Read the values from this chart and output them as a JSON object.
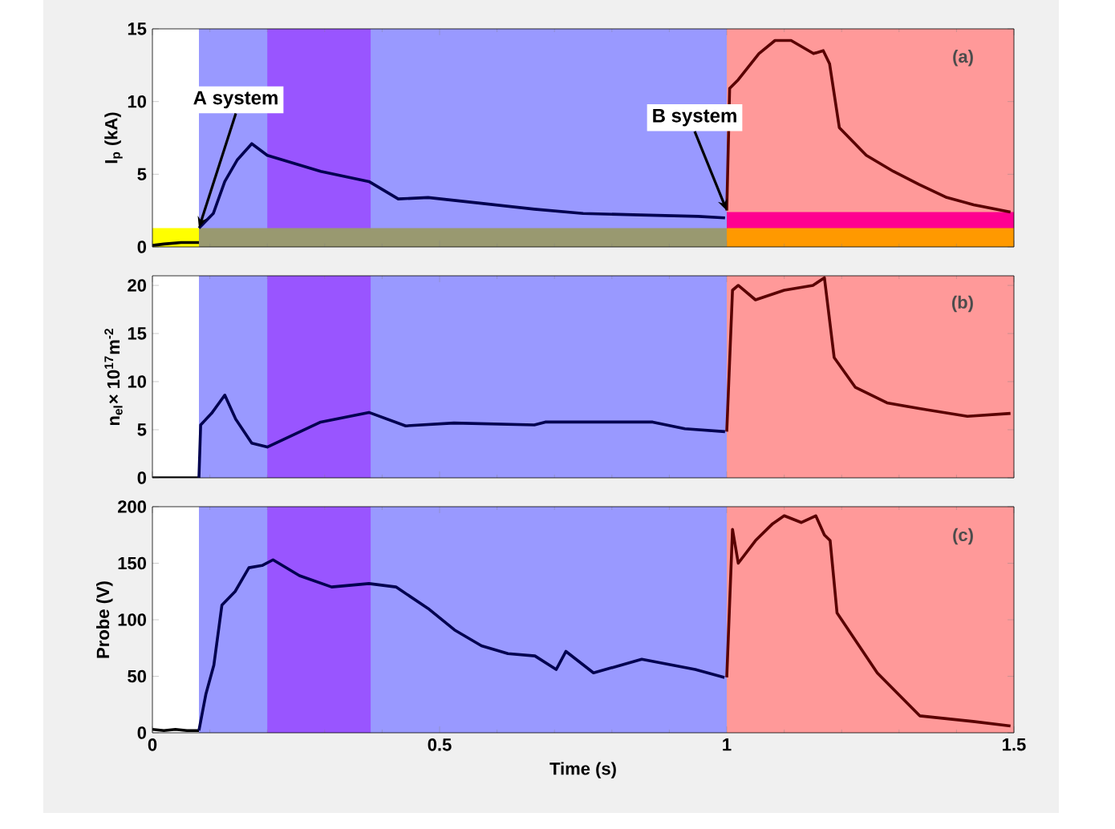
{
  "chart_data": [
    {
      "type": "line",
      "ylabel": "I$_{p}$ (kA)",
      "xlim": [
        0,
        1.5
      ],
      "ylim": [
        0,
        15
      ],
      "xticks": [
        0,
        0.5,
        1,
        1.5
      ],
      "yticks": [
        0,
        5,
        10,
        15
      ],
      "tick_labels": "y",
      "bands": [
        {
          "axis": "x",
          "from": 0.081,
          "to": 1.0,
          "color": "#9999ff"
        },
        {
          "axis": "x",
          "from": 0.2,
          "to": 0.38,
          "color": "#9955ff"
        },
        {
          "axis": "x",
          "from": 1.0,
          "to": 1.5,
          "color": "#ff9999"
        }
      ],
      "series": [
        {
          "type": "area",
          "color": "#ffff00",
          "x": [
            0,
            0.081
          ],
          "values": [
            1.3,
            1.3
          ]
        },
        {
          "type": "area",
          "color": "#999970",
          "x": [
            0.081,
            1.0
          ],
          "values": [
            1.3,
            1.3
          ]
        },
        {
          "type": "area",
          "color": "#ff0090",
          "x": [
            1.0,
            1.5
          ],
          "values": [
            2.4,
            2.4
          ]
        },
        {
          "type": "area",
          "color": "#ff9900",
          "x": [
            1.0,
            1.5
          ],
          "values": [
            1.3,
            1.3
          ]
        },
        {
          "color": "#000000",
          "x": [
            0,
            0.02,
            0.05,
            0.081
          ],
          "values": [
            0.1,
            0.2,
            0.3,
            0.3
          ]
        },
        {
          "color": "#000050",
          "x": [
            0.081,
            0.106,
            0.126,
            0.148,
            0.173,
            0.2,
            0.293,
            0.377,
            0.428,
            0.48,
            0.573,
            0.665,
            0.75,
            0.85,
            0.95,
            0.997
          ],
          "values": [
            1.3,
            2.3,
            4.5,
            6.0,
            7.1,
            6.3,
            5.2,
            4.5,
            3.3,
            3.4,
            3.0,
            2.6,
            2.3,
            2.2,
            2.1,
            2.0
          ]
        },
        {
          "color": "#5a0000",
          "x": [
            1.0,
            1.005,
            1.02,
            1.056,
            1.084,
            1.112,
            1.151,
            1.168,
            1.179,
            1.196,
            1.243,
            1.29,
            1.335,
            1.383,
            1.43,
            1.494
          ],
          "values": [
            2.5,
            10.9,
            11.5,
            13.3,
            14.2,
            14.2,
            13.3,
            13.5,
            12.6,
            8.2,
            6.3,
            5.2,
            4.3,
            3.4,
            2.9,
            2.4
          ]
        }
      ],
      "annotations": [
        {
          "text": "A system",
          "x": 0.081,
          "y": 1.3
        },
        {
          "text": "B system",
          "x": 1.0,
          "y": 2.5
        },
        "(a)"
      ]
    },
    {
      "type": "line",
      "ylabel": "n$_{el}$× 10$^{17}$m$^{-2}$",
      "xlim": [
        0,
        1.5
      ],
      "ylim": [
        0,
        21
      ],
      "xticks": [
        0,
        0.5,
        1,
        1.5
      ],
      "yticks": [
        0,
        5,
        10,
        15,
        20
      ],
      "tick_labels": "y",
      "bands": [
        {
          "axis": "x",
          "from": 0.081,
          "to": 1.0,
          "color": "#9999ff"
        },
        {
          "axis": "x",
          "from": 0.2,
          "to": 0.38,
          "color": "#9955ff"
        },
        {
          "axis": "x",
          "from": 1.0,
          "to": 1.5,
          "color": "#ff9999"
        }
      ],
      "series": [
        {
          "color": "#000000",
          "x": [
            0,
            0.081
          ],
          "values": [
            0,
            0
          ]
        },
        {
          "color": "#000050",
          "x": [
            0.081,
            0.084,
            0.103,
            0.126,
            0.145,
            0.173,
            0.2,
            0.293,
            0.377,
            0.441,
            0.525,
            0.665,
            0.684,
            0.871,
            0.927,
            0.997
          ],
          "values": [
            0,
            5.5,
            6.7,
            8.6,
            6.1,
            3.6,
            3.2,
            5.8,
            6.8,
            5.4,
            5.7,
            5.5,
            5.8,
            5.8,
            5.1,
            4.8
          ]
        },
        {
          "color": "#5a0000",
          "x": [
            1.0,
            1.01,
            1.02,
            1.05,
            1.1,
            1.15,
            1.17,
            1.187,
            1.224,
            1.279,
            1.335,
            1.419,
            1.494
          ],
          "values": [
            4.8,
            19.5,
            20,
            18.5,
            19.5,
            20,
            20.8,
            12.5,
            9.4,
            7.8,
            7.2,
            6.4,
            6.7
          ]
        }
      ],
      "annotations": [
        "(b)"
      ]
    },
    {
      "type": "line",
      "xlabel": "Time (s)",
      "ylabel": "Probe (V)",
      "xlim": [
        0,
        1.5
      ],
      "ylim": [
        0,
        200
      ],
      "xticks": [
        0,
        0.5,
        1,
        1.5
      ],
      "yticks": [
        0,
        50,
        100,
        150,
        200
      ],
      "bands": [
        {
          "axis": "x",
          "from": 0.081,
          "to": 1.0,
          "color": "#9999ff"
        },
        {
          "axis": "x",
          "from": 0.2,
          "to": 0.38,
          "color": "#9955ff"
        },
        {
          "axis": "x",
          "from": 1.0,
          "to": 1.5,
          "color": "#ff9999"
        }
      ],
      "series": [
        {
          "color": "#000000",
          "x": [
            0,
            0.02,
            0.04,
            0.06,
            0.081
          ],
          "values": [
            3,
            2,
            3,
            2,
            2
          ]
        },
        {
          "color": "#000050",
          "x": [
            0.081,
            0.093,
            0.107,
            0.121,
            0.144,
            0.168,
            0.191,
            0.21,
            0.256,
            0.312,
            0.377,
            0.424,
            0.48,
            0.526,
            0.573,
            0.619,
            0.666,
            0.703,
            0.72,
            0.768,
            0.852,
            0.945,
            0.996
          ],
          "values": [
            2,
            34,
            60,
            113,
            125,
            146,
            148,
            153,
            139,
            129,
            132,
            129,
            110,
            91,
            77,
            70,
            68,
            56,
            72,
            53,
            65,
            56,
            49
          ]
        },
        {
          "color": "#5a0000",
          "x": [
            1.0,
            1.01,
            1.02,
            1.05,
            1.08,
            1.1,
            1.13,
            1.155,
            1.17,
            1.18,
            1.192,
            1.262,
            1.336,
            1.429,
            1.494
          ],
          "values": [
            49,
            180,
            150,
            170,
            185,
            192,
            186,
            192,
            175,
            170,
            106,
            53,
            15,
            10,
            6
          ]
        }
      ],
      "annotations": [
        "(c)"
      ]
    }
  ]
}
